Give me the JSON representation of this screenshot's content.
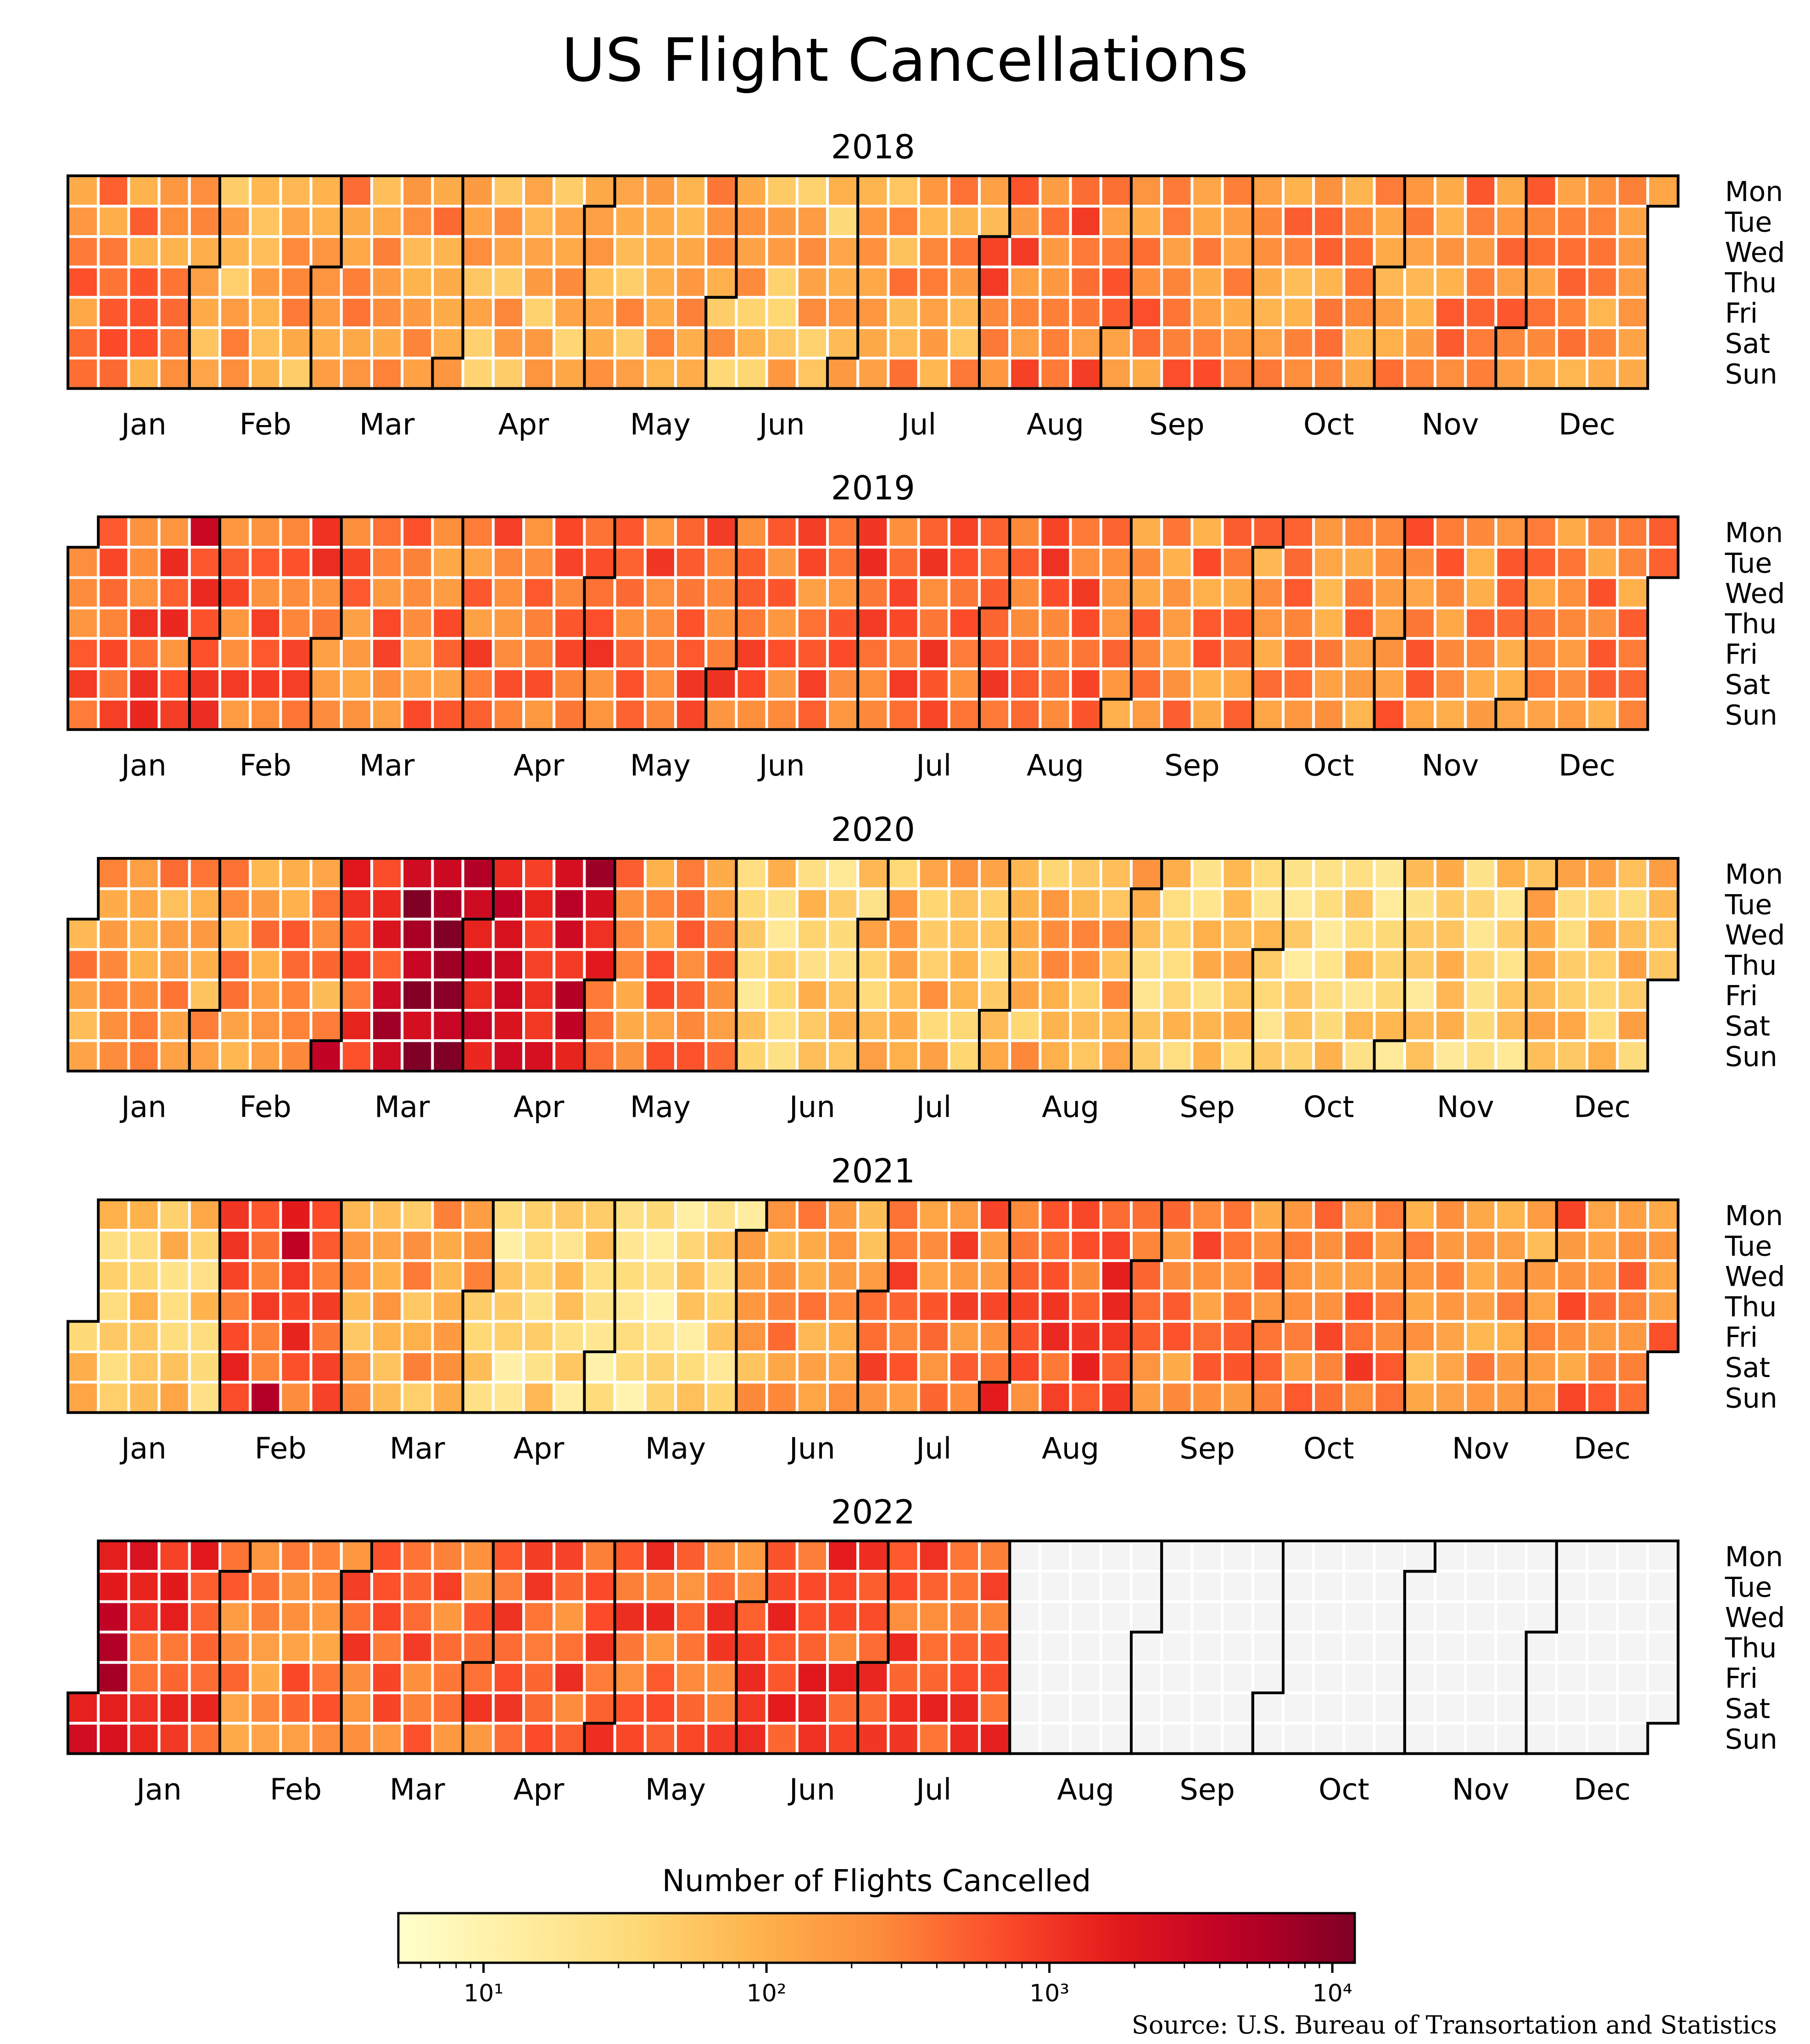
{
  "chart_data": {
    "type": "heatmap",
    "title": "US Flight Cancellations",
    "years": [
      2018,
      2019,
      2020,
      2021,
      2022
    ],
    "weekday_labels": [
      "Mon",
      "Tue",
      "Wed",
      "Thu",
      "Fri",
      "Sat",
      "Sun"
    ],
    "month_labels": [
      "Jan",
      "Feb",
      "Mar",
      "Apr",
      "May",
      "Jun",
      "Jul",
      "Aug",
      "Sep",
      "Oct",
      "Nov",
      "Dec"
    ],
    "colorbar": {
      "label": "Number of Flights Cancelled",
      "scale": "log",
      "range": [
        5,
        12000
      ],
      "ticks": [
        {
          "value": 10,
          "label": "10¹"
        },
        {
          "value": 100,
          "label": "10²"
        },
        {
          "value": 1000,
          "label": "10³"
        },
        {
          "value": 10000,
          "label": "10⁴"
        }
      ],
      "colormap": "YlOrRd"
    },
    "no_data_color": "#f4f4f4",
    "no_data_note": "2022 daily values shown through end of July; August–December have no data",
    "estimated_monthly_typical_cancellations": {
      "2018": [
        250,
        120,
        180,
        100,
        130,
        90,
        160,
        400,
        250,
        200,
        220,
        200
      ],
      "2019": [
        500,
        450,
        300,
        350,
        450,
        400,
        450,
        400,
        250,
        200,
        250,
        250
      ],
      "2020": [
        150,
        200,
        1500,
        3000,
        250,
        40,
        80,
        100,
        50,
        40,
        40,
        80
      ],
      "2021": [
        60,
        600,
        120,
        30,
        25,
        150,
        350,
        600,
        300,
        400,
        150,
        300
      ],
      "2022": [
        900,
        300,
        400,
        500,
        500,
        700,
        600,
        null,
        null,
        null,
        null,
        null
      ]
    },
    "source": "Source: U.S. Bureau of Transortation and Statistics"
  }
}
